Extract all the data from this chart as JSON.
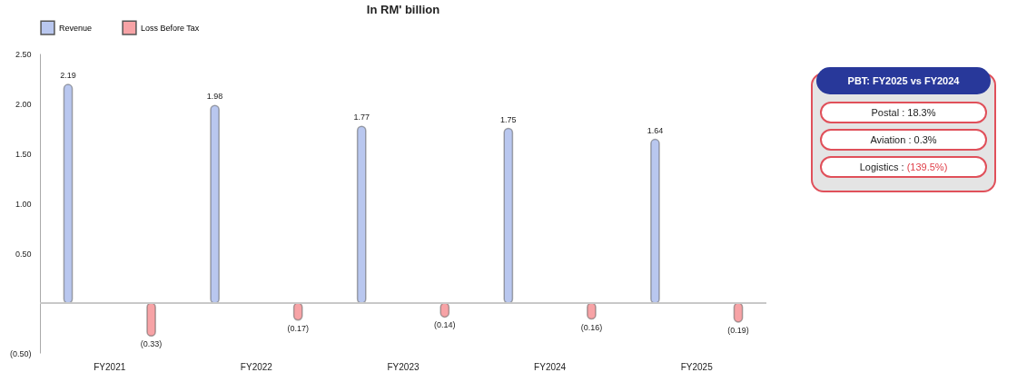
{
  "chart_data": {
    "type": "bar",
    "title": "In RM' billion",
    "categories": [
      "FY2021",
      "FY2022",
      "FY2023",
      "FY2024",
      "FY2025"
    ],
    "series": [
      {
        "name": "Revenue",
        "color": "#b9c7ef",
        "values": [
          2.19,
          1.98,
          1.77,
          1.75,
          1.64
        ],
        "value_labels": [
          "2.19",
          "1.98",
          "1.77",
          "1.75",
          "1.64"
        ]
      },
      {
        "name": "Loss Before Tax",
        "color": "#f7a3a6",
        "values": [
          -0.33,
          -0.17,
          -0.14,
          -0.16,
          -0.19
        ],
        "value_labels": [
          "(0.33)",
          "(0.17)",
          "(0.14)",
          "(0.16)",
          "(0.19)"
        ]
      }
    ],
    "ylim": [
      -0.5,
      2.5
    ],
    "yticks": [
      {
        "value": -0.5,
        "label": "(0.50)"
      },
      {
        "value": 0.5,
        "label": "0.50"
      },
      {
        "value": 1,
        "label": "1.00"
      },
      {
        "value": 1.5,
        "label": "1.50"
      },
      {
        "value": 2,
        "label": "2.00"
      },
      {
        "value": 2.5,
        "label": "2.50"
      }
    ],
    "ref_lines": [
      {
        "axis": "y",
        "value": 0
      }
    ],
    "grid": false,
    "legend": "top",
    "annotations": [
      "PBT:  FY2025 vs FY2024",
      "Postal : 18.3%",
      "Aviation : 0.3%",
      "Logistics : (139.5%)"
    ]
  }
}
